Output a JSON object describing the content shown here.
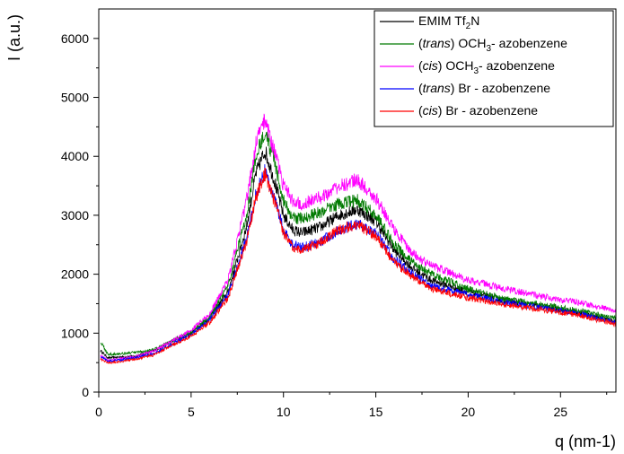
{
  "chart_data": {
    "type": "line",
    "title": "",
    "xlabel": "q (nm-1)",
    "ylabel": "I (a.u.)",
    "xlim": [
      0,
      28
    ],
    "ylim": [
      0,
      6500
    ],
    "x_ticks": [
      0,
      5,
      10,
      15,
      20,
      25
    ],
    "y_ticks": [
      0,
      1000,
      2000,
      3000,
      4000,
      5000,
      6000
    ],
    "grid": false,
    "legend_position": "top-right",
    "legend": [
      {
        "pre": "",
        "italic": "",
        "main": "EMIM Tf",
        "sub": "2",
        "post": "N",
        "color": "#000000"
      },
      {
        "pre": "(",
        "italic": "trans",
        "main": ") OCH",
        "sub": "3",
        "post": "- azobenzene",
        "color": "#007a00"
      },
      {
        "pre": "(",
        "italic": "cis",
        "main": ") OCH",
        "sub": "3",
        "post": "- azobenzene",
        "color": "#ff00ff"
      },
      {
        "pre": "(",
        "italic": "trans",
        "main": ") Br - azobenzene",
        "sub": "",
        "post": "",
        "color": "#0000ff"
      },
      {
        "pre": " (",
        "italic": "cis",
        "main": ") Br - azobenzene",
        "sub": "",
        "post": "",
        "color": "#ff0000"
      }
    ],
    "x": [
      0.1,
      0.5,
      1,
      2,
      3,
      4,
      5,
      6,
      7,
      8,
      8.5,
      9,
      9.5,
      10,
      10.5,
      11,
      12,
      13,
      14,
      15,
      16,
      17,
      18,
      20,
      22,
      24,
      26,
      28
    ],
    "series": [
      {
        "name": "EMIM Tf2N",
        "color": "#000000",
        "values": [
          700,
          580,
          590,
          610,
          700,
          870,
          1000,
          1250,
          1700,
          2800,
          3700,
          4100,
          3600,
          3000,
          2750,
          2700,
          2800,
          3000,
          3100,
          2900,
          2400,
          2100,
          1900,
          1700,
          1550,
          1450,
          1350,
          1200
        ]
      },
      {
        "name": "(trans) OCH3- azobenzene",
        "color": "#007a00",
        "values": [
          850,
          640,
          650,
          670,
          720,
          880,
          1020,
          1280,
          1800,
          3000,
          4000,
          4450,
          3900,
          3250,
          2950,
          2950,
          3050,
          3200,
          3250,
          3000,
          2500,
          2200,
          2000,
          1750,
          1580,
          1480,
          1380,
          1250
        ]
      },
      {
        "name": "(cis) OCH3- azobenzene",
        "color": "#ff00ff",
        "values": [
          620,
          540,
          560,
          600,
          700,
          870,
          1050,
          1320,
          1900,
          3250,
          4200,
          4650,
          4100,
          3500,
          3250,
          3200,
          3300,
          3500,
          3600,
          3300,
          2750,
          2350,
          2150,
          1900,
          1750,
          1620,
          1520,
          1380
        ]
      },
      {
        "name": "(trans) Br - azobenzene",
        "color": "#0000ff",
        "values": [
          600,
          530,
          540,
          580,
          650,
          820,
          980,
          1220,
          1650,
          2600,
          3350,
          3750,
          3300,
          2750,
          2500,
          2450,
          2550,
          2750,
          2850,
          2700,
          2250,
          2000,
          1800,
          1650,
          1520,
          1430,
          1330,
          1180
        ]
      },
      {
        "name": "(cis) Br - azobenzene",
        "color": "#ff0000",
        "values": [
          560,
          500,
          510,
          560,
          630,
          800,
          950,
          1180,
          1600,
          2550,
          3300,
          3700,
          3250,
          2700,
          2450,
          2400,
          2550,
          2750,
          2850,
          2650,
          2200,
          1950,
          1750,
          1600,
          1480,
          1400,
          1300,
          1150
        ]
      }
    ]
  }
}
